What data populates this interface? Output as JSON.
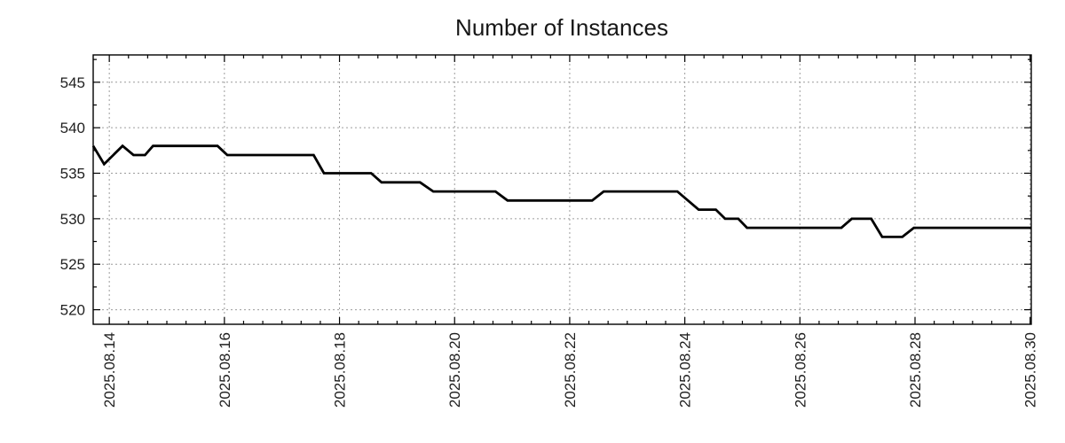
{
  "title": "Number of Instances",
  "chart_data": {
    "type": "line",
    "title": "Number of Instances",
    "xlabel": "",
    "ylabel": "",
    "x_unit": "days since 2025.08.14 00:00",
    "xlim": [
      -0.28,
      16.02
    ],
    "ylim": [
      518.4,
      548.0
    ],
    "x_major_tick_positions": [
      0,
      2,
      4,
      6,
      8,
      10,
      12,
      14,
      16
    ],
    "x_major_tick_labels": [
      "2025.08.14",
      "2025.08.16",
      "2025.08.18",
      "2025.08.20",
      "2025.08.22",
      "2025.08.24",
      "2025.08.26",
      "2025.08.28",
      "2025.08.30"
    ],
    "y_major_ticks": [
      520,
      525,
      530,
      535,
      540,
      545
    ],
    "x_minor_step_days": 0.3333333,
    "y_minor_step": 2.5,
    "grid": "dashed major gridlines, both axes",
    "legend": "none",
    "line_color": "#000000",
    "grid_color": "#9c9c9c",
    "border_color": "#000000",
    "series": [
      {
        "name": "instances",
        "points": [
          [
            -0.28,
            538
          ],
          [
            -0.09,
            536
          ],
          [
            0.23,
            538
          ],
          [
            0.42,
            537
          ],
          [
            0.62,
            537
          ],
          [
            0.76,
            538
          ],
          [
            1.88,
            538
          ],
          [
            2.05,
            537
          ],
          [
            3.55,
            537
          ],
          [
            3.73,
            535
          ],
          [
            4.55,
            535
          ],
          [
            4.73,
            534
          ],
          [
            5.4,
            534
          ],
          [
            5.63,
            533
          ],
          [
            6.71,
            533
          ],
          [
            6.92,
            532
          ],
          [
            8.39,
            532
          ],
          [
            8.59,
            533
          ],
          [
            9.87,
            533
          ],
          [
            10.24,
            531
          ],
          [
            10.54,
            531
          ],
          [
            10.7,
            530
          ],
          [
            10.93,
            530
          ],
          [
            11.08,
            529
          ],
          [
            12.72,
            529
          ],
          [
            12.9,
            530
          ],
          [
            13.24,
            530
          ],
          [
            13.43,
            528
          ],
          [
            13.78,
            528
          ],
          [
            13.98,
            529
          ],
          [
            16.02,
            529
          ]
        ]
      }
    ]
  }
}
